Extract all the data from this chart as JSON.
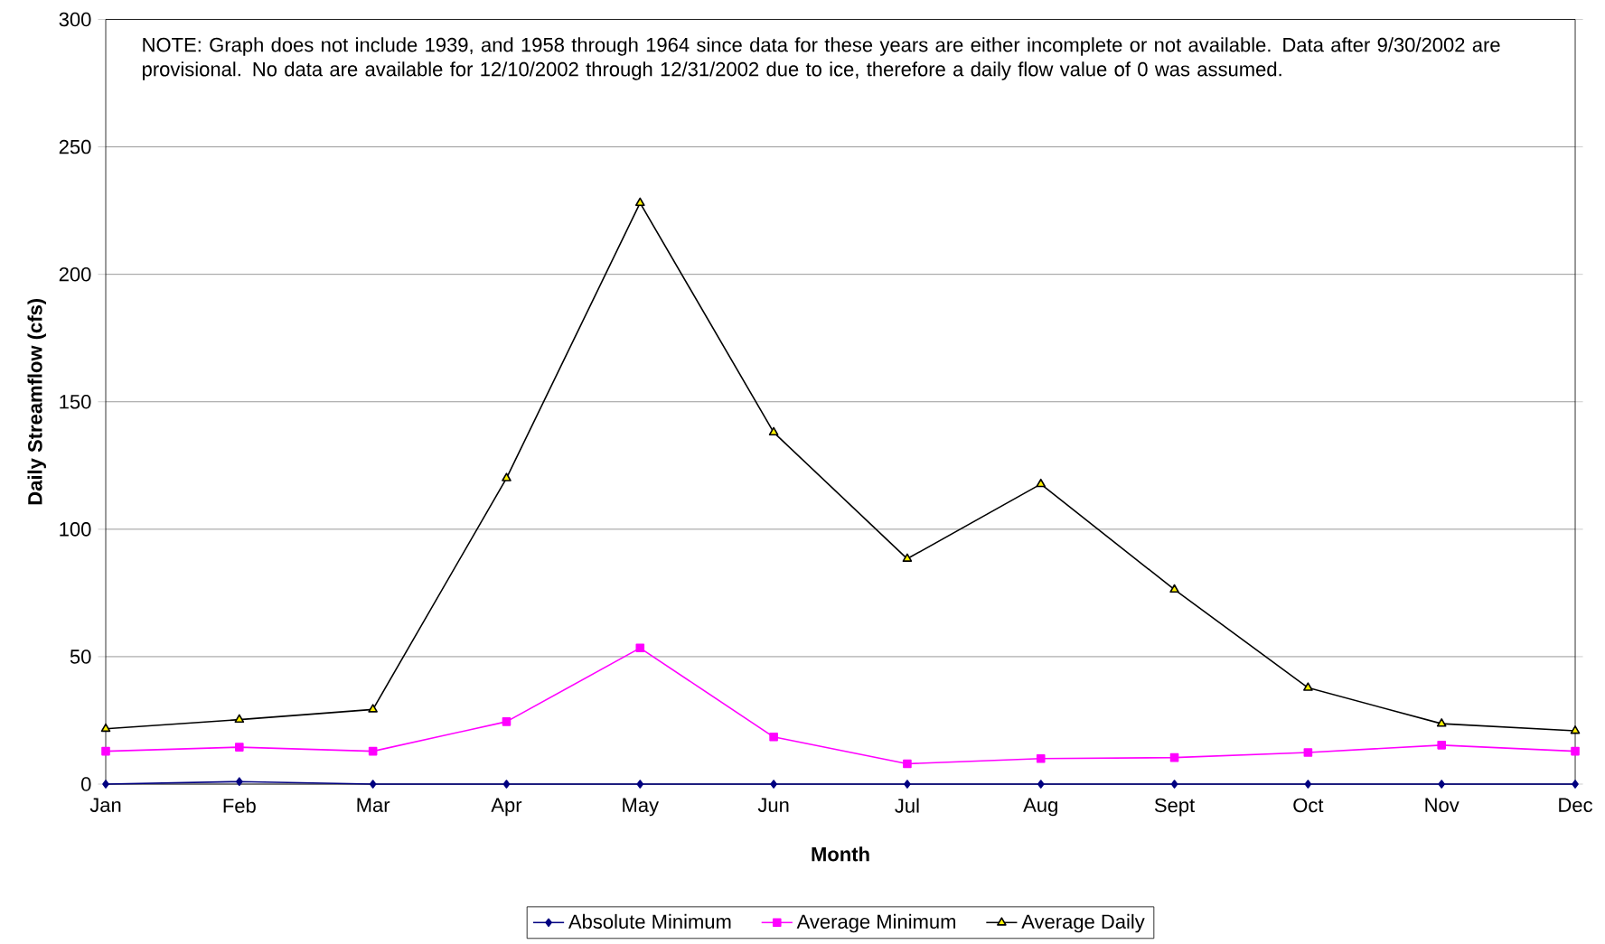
{
  "chart_data": {
    "type": "line",
    "xlabel": "Month",
    "ylabel": "Daily Streamflow (cfs)",
    "annotations": [
      "NOTE:  Graph does not include 1939, and 1958 through 1964 since data for these years are either incomplete or not available.  Data after 9/30/2002 are provisional.  No data are available for 12/10/2002 through 12/31/2002 due to ice, therefore a daily flow value of 0 was assumed."
    ],
    "categories": [
      "Jan",
      "Feb",
      "Mar",
      "Apr",
      "May",
      "Jun",
      "Jul",
      "Aug",
      "Sept",
      "Oct",
      "Nov",
      "Dec"
    ],
    "series": [
      {
        "name": "Absolute Minimum",
        "color": "#000080",
        "marker": "diamond",
        "values": [
          0,
          1,
          0,
          0,
          0,
          0,
          0,
          0,
          0,
          0,
          0,
          0
        ]
      },
      {
        "name": "Average Minimum",
        "color": "#ff00ff",
        "marker": "square",
        "values": [
          12.9,
          14.5,
          12.9,
          24.5,
          53.4,
          18.5,
          8,
          10,
          10.4,
          12.4,
          15.3,
          12.9
        ]
      },
      {
        "name": "Average Daily",
        "color": "#000000",
        "marker": "triangle",
        "values": [
          21.7,
          25.3,
          29.3,
          120,
          228,
          138,
          88.4,
          117.7,
          76.3,
          37.8,
          23.7,
          20.9
        ]
      }
    ],
    "ylim": [
      0,
      300
    ],
    "yticks": [
      0,
      50,
      100,
      150,
      200,
      250,
      300
    ],
    "grid": "y",
    "legend": "bottom",
    "line_style": "solid"
  }
}
